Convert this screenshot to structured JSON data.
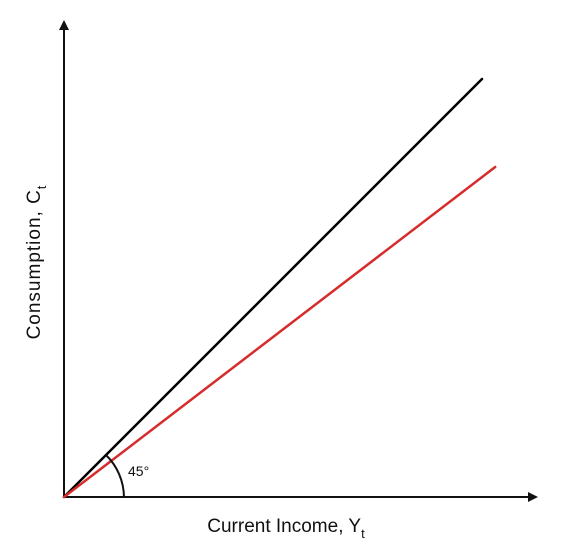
{
  "chart_data": {
    "type": "line",
    "title": "",
    "xlabel": {
      "text": "Current Income, Y",
      "subscript": "t"
    },
    "ylabel": {
      "text": "Consumption, C",
      "subscript": "t"
    },
    "xlim": [
      0,
      100
    ],
    "ylim": [
      0,
      100
    ],
    "grid": false,
    "legend": "none",
    "series": [
      {
        "color": "#000000",
        "x": [
          0,
          95
        ],
        "y": [
          0,
          95
        ]
      },
      {
        "color": "#d62c2c",
        "x": [
          0,
          98
        ],
        "y": [
          0,
          75
        ]
      }
    ],
    "annotations": [
      {
        "text": "45°",
        "angle_between": "x-axis and black line"
      }
    ]
  }
}
